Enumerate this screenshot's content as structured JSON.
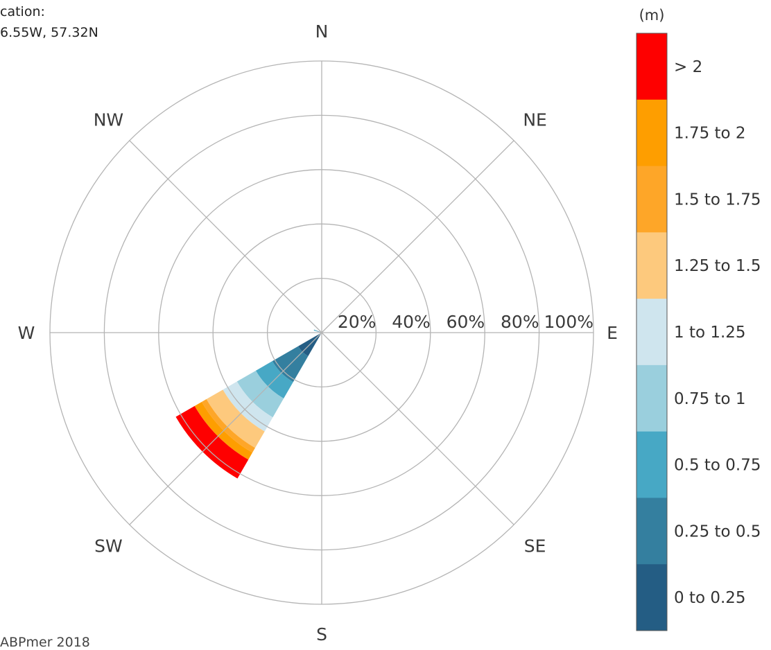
{
  "header": {
    "location_label": "cation:",
    "location_value": "6.55W, 57.32N"
  },
  "footer": {
    "text": "ABPmer 2018"
  },
  "chart_data": {
    "type": "wind-rose",
    "unit_label": "(m)",
    "directions": [
      "N",
      "NE",
      "E",
      "SE",
      "S",
      "SW",
      "W",
      "NW"
    ],
    "radial_ticks": [
      "20%",
      "40%",
      "60%",
      "80%",
      "100%"
    ],
    "radial_max": 100,
    "bins": [
      {
        "label": "0 to 0.25",
        "color": "#245d84"
      },
      {
        "label": "0.25 to 0.5",
        "color": "#347f9f"
      },
      {
        "label": "0.5 to 0.75",
        "color": "#47a8c5"
      },
      {
        "label": "0.75 to 1",
        "color": "#9acfdd"
      },
      {
        "label": "1 to 1.25",
        "color": "#cfe5ee"
      },
      {
        "label": "1.25 to 1.5",
        "color": "#fdc97d"
      },
      {
        "label": "1.5 to 1.75",
        "color": "#fea628"
      },
      {
        "label": "1.75 to 2",
        "color": "#fe9e00"
      },
      {
        "label": "> 2",
        "color": "#fe0000"
      }
    ],
    "sectors": [
      {
        "direction": "SW",
        "start_deg": 210,
        "end_deg": 240,
        "cumulative": [
          10,
          21,
          28,
          36,
          42,
          49,
          51,
          54,
          62
        ]
      },
      {
        "direction": "WNW",
        "start_deg": 285,
        "end_deg": 292,
        "cumulative": [
          1,
          2,
          3,
          0,
          0,
          0,
          0,
          0,
          0
        ]
      }
    ]
  }
}
